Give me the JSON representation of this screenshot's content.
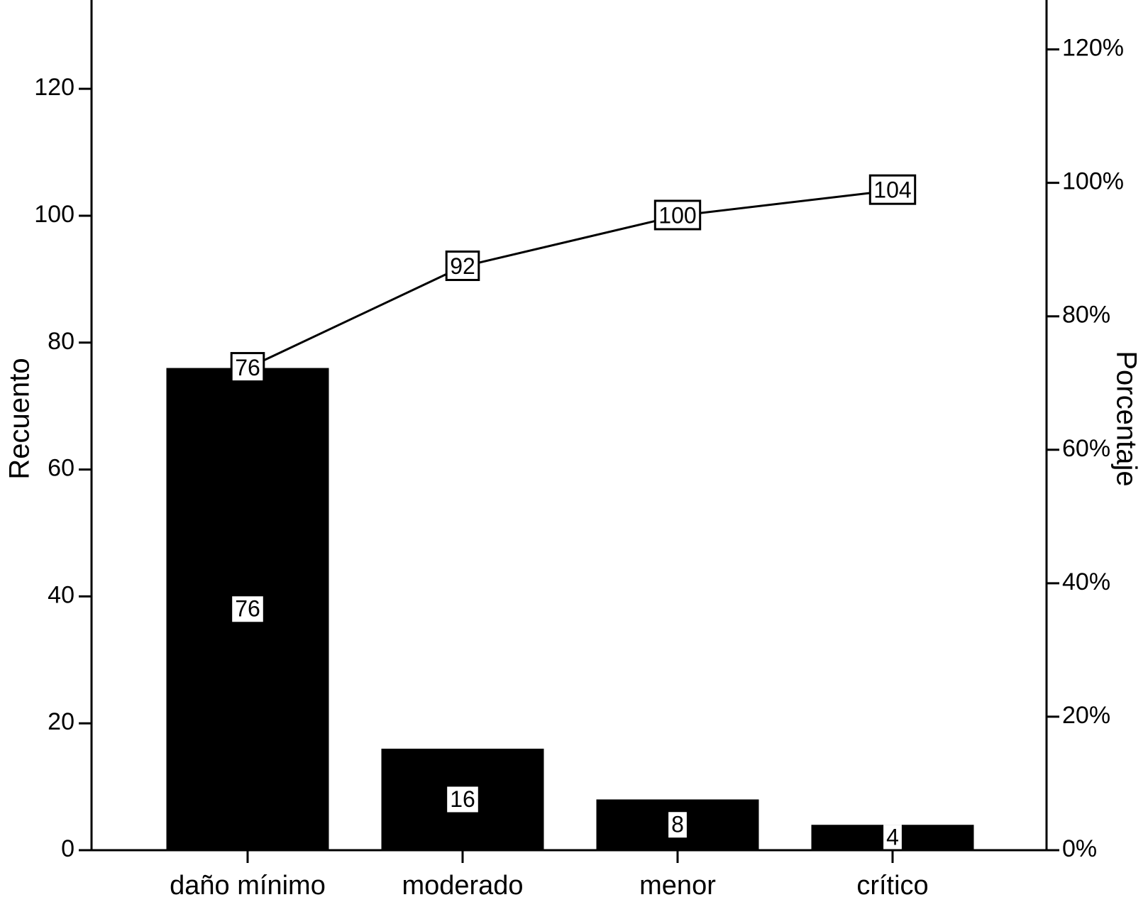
{
  "chart_data": {
    "type": "pareto",
    "categories": [
      "daño mínimo",
      "moderado",
      "menor",
      "crítico"
    ],
    "values": [
      76,
      16,
      8,
      4
    ],
    "cumulative": [
      76,
      92,
      100,
      104
    ],
    "color": "#000000",
    "ylabel": "Recuento",
    "y2label": "Porcentaje",
    "ylim": [
      0,
      134
    ],
    "yticks": [
      0,
      20,
      40,
      60,
      80,
      100,
      120
    ],
    "y2lim": [
      0,
      127.4
    ],
    "y2ticks": [
      {
        "value": 0,
        "label": "0%"
      },
      {
        "value": 20,
        "label": "20%"
      },
      {
        "value": 40,
        "label": "40%"
      },
      {
        "value": 60,
        "label": "60%"
      },
      {
        "value": 80,
        "label": "80%"
      },
      {
        "value": 100,
        "label": "100%"
      },
      {
        "value": 120,
        "label": "120%"
      }
    ]
  }
}
